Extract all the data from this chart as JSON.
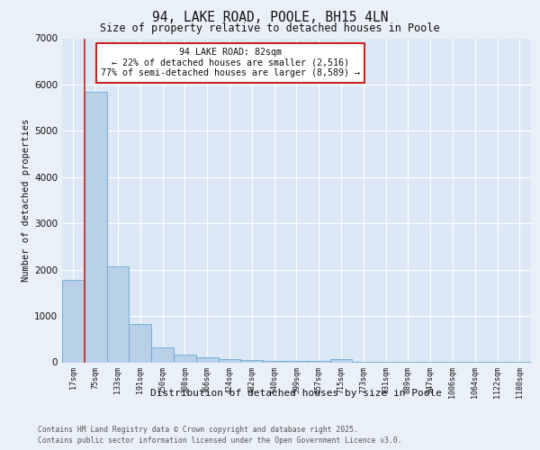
{
  "title1": "94, LAKE ROAD, POOLE, BH15 4LN",
  "title2": "Size of property relative to detached houses in Poole",
  "xlabel": "Distribution of detached houses by size in Poole",
  "ylabel": "Number of detached properties",
  "categories": [
    "17sqm",
    "75sqm",
    "133sqm",
    "191sqm",
    "250sqm",
    "308sqm",
    "366sqm",
    "424sqm",
    "482sqm",
    "540sqm",
    "599sqm",
    "657sqm",
    "715sqm",
    "773sqm",
    "831sqm",
    "889sqm",
    "947sqm",
    "1006sqm",
    "1064sqm",
    "1122sqm",
    "1180sqm"
  ],
  "values": [
    1780,
    5850,
    2080,
    820,
    330,
    175,
    105,
    65,
    50,
    35,
    25,
    20,
    60,
    10,
    8,
    6,
    5,
    4,
    3,
    3,
    2
  ],
  "bar_color": "#b8d0e8",
  "bar_edge_color": "#6aaad4",
  "vline_color": "#cc2222",
  "annotation_title": "94 LAKE ROAD: 82sqm",
  "annotation_line2": "← 22% of detached houses are smaller (2,516)",
  "annotation_line3": "77% of semi-detached houses are larger (8,589) →",
  "annotation_box_facecolor": "#ffffff",
  "annotation_box_edgecolor": "#cc2222",
  "ylim": [
    0,
    7000
  ],
  "yticks": [
    0,
    1000,
    2000,
    3000,
    4000,
    5000,
    6000,
    7000
  ],
  "plot_bg": "#dce8f5",
  "fig_bg": "#eaf0f8",
  "footer1": "Contains HM Land Registry data © Crown copyright and database right 2025.",
  "footer2": "Contains public sector information licensed under the Open Government Licence v3.0."
}
